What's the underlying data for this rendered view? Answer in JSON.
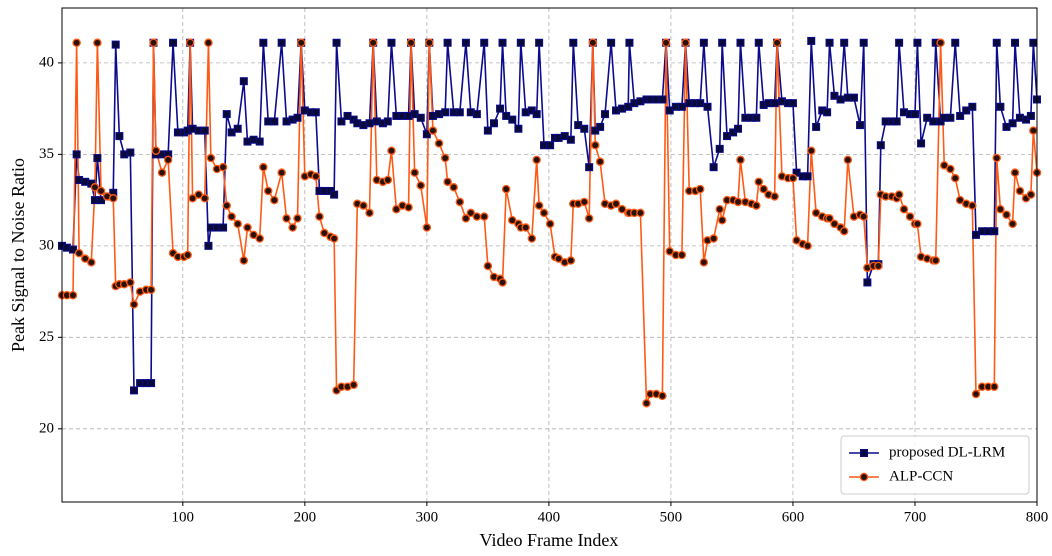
{
  "chart_data": {
    "type": "line",
    "x_label": "Video Frame Index",
    "y_label": "Peak Signal to Noise Ratio",
    "x": [
      1,
      5,
      10,
      13,
      15,
      20,
      25,
      28,
      30,
      33,
      38,
      43,
      45,
      48,
      52,
      57,
      60,
      65,
      70,
      74,
      76,
      78,
      83,
      88,
      92,
      96,
      101,
      104,
      106,
      108,
      113,
      118,
      121,
      123,
      128,
      133,
      136,
      140,
      145,
      150,
      153,
      158,
      163,
      166,
      170,
      175,
      181,
      185,
      190,
      194,
      197,
      200,
      205,
      209,
      212,
      216,
      221,
      224,
      226,
      230,
      235,
      240,
      243,
      248,
      253,
      256,
      259,
      264,
      268,
      271,
      275,
      280,
      285,
      287,
      290,
      295,
      300,
      302,
      305,
      310,
      315,
      317,
      322,
      327,
      332,
      336,
      341,
      347,
      350,
      355,
      360,
      362,
      365,
      370,
      375,
      377,
      381,
      386,
      390,
      392,
      396,
      401,
      405,
      408,
      413,
      418,
      420,
      424,
      429,
      433,
      436,
      438,
      442,
      446,
      451,
      455,
      460,
      465,
      466,
      470,
      475,
      480,
      483,
      488,
      493,
      496,
      499,
      504,
      509,
      512,
      515,
      520,
      524,
      527,
      530,
      535,
      540,
      542,
      546,
      551,
      555,
      557,
      561,
      566,
      570,
      572,
      576,
      580,
      585,
      587,
      591,
      596,
      600,
      603,
      608,
      612,
      615,
      619,
      624,
      628,
      630,
      634,
      639,
      642,
      645,
      650,
      655,
      658,
      661,
      666,
      670,
      672,
      676,
      681,
      685,
      687,
      691,
      696,
      700,
      702,
      705,
      710,
      715,
      717,
      721,
      724,
      729,
      733,
      737,
      742,
      747,
      750,
      755,
      760,
      765,
      767,
      770,
      775,
      780,
      782,
      786,
      791,
      795,
      797,
      800
    ],
    "series": [
      {
        "name": "proposed DL-LRM",
        "color": "#0b0b8c",
        "marker": "square",
        "values": [
          30,
          29.9,
          29.8,
          35,
          33.6,
          33.5,
          33.4,
          32.5,
          34.8,
          32.5,
          32.7,
          32.9,
          41,
          36,
          35,
          35.1,
          22.1,
          22.5,
          22.5,
          22.5,
          41.1,
          35,
          35,
          35,
          41.1,
          36.2,
          36.2,
          36.3,
          41.1,
          36.4,
          36.3,
          36.3,
          30,
          31,
          31,
          31,
          37.2,
          36.2,
          36.4,
          39,
          35.7,
          35.8,
          35.7,
          41.1,
          36.8,
          36.8,
          41.1,
          36.8,
          36.9,
          37,
          41.1,
          37.4,
          37.3,
          37.3,
          33,
          33,
          33,
          32.8,
          41.1,
          36.8,
          37.1,
          36.9,
          36.7,
          36.6,
          36.7,
          41.1,
          36.8,
          36.7,
          36.8,
          41.1,
          37.1,
          37.1,
          37.1,
          41.1,
          37.2,
          37,
          36.1,
          41.1,
          37.1,
          37.2,
          37.3,
          41.1,
          37.3,
          37.3,
          41.1,
          37.3,
          37.2,
          41.1,
          36.3,
          36.7,
          37.5,
          41.1,
          37.1,
          36.9,
          36.4,
          41.1,
          37.3,
          37.4,
          37.2,
          41.1,
          35.5,
          35.5,
          35.9,
          35.9,
          36,
          35.8,
          41.1,
          36.6,
          36.4,
          34.3,
          41.1,
          36.3,
          36.5,
          37.2,
          41.1,
          37.4,
          37.5,
          37.6,
          41.1,
          37.8,
          37.9,
          38,
          38,
          38,
          38,
          41.1,
          37.4,
          37.6,
          37.6,
          41.1,
          37.8,
          37.8,
          37.8,
          41.1,
          37.6,
          34.3,
          35.3,
          41.1,
          36,
          36.2,
          36.4,
          41.1,
          37,
          37,
          37,
          41.1,
          37.7,
          37.8,
          37.8,
          41.1,
          37.9,
          37.8,
          37.8,
          34,
          33.8,
          33.8,
          41.2,
          36.5,
          37.4,
          37.3,
          41.1,
          38.2,
          38,
          41.1,
          38.1,
          38.1,
          36.6,
          41.1,
          28,
          29,
          29,
          35.5,
          36.8,
          36.8,
          36.8,
          41.1,
          37.3,
          37.2,
          37.2,
          41.1,
          35.6,
          37,
          36.8,
          41.1,
          36.8,
          37,
          37,
          41.1,
          37.1,
          37.4,
          37.6,
          30.6,
          30.8,
          30.8,
          30.8,
          41.1,
          37.6,
          36.5,
          36.7,
          41.1,
          37,
          36.9,
          37.1,
          41.1,
          38
        ]
      },
      {
        "name": "ALP-CCN",
        "color": "#ff5a14",
        "marker": "circle",
        "values": [
          27.3,
          27.3,
          27.3,
          41.1,
          29.6,
          29.3,
          29.1,
          33.2,
          41.1,
          33,
          32.7,
          32.6,
          27.8,
          27.9,
          27.9,
          28,
          26.8,
          27.5,
          27.6,
          27.6,
          41.1,
          35.2,
          34,
          34.7,
          29.6,
          29.4,
          29.4,
          29.5,
          41.1,
          32.6,
          32.8,
          32.6,
          41.1,
          34.8,
          34.2,
          34.3,
          32.2,
          31.6,
          31.2,
          29.2,
          31,
          30.6,
          30.4,
          34.3,
          33,
          32.5,
          34,
          31.5,
          31,
          31.5,
          41.1,
          33.8,
          33.9,
          33.8,
          31.6,
          30.7,
          30.5,
          30.4,
          22.1,
          22.3,
          22.3,
          22.4,
          32.3,
          32.2,
          31.8,
          41.1,
          33.6,
          33.5,
          33.6,
          35.2,
          32,
          32.2,
          32.1,
          41.1,
          34,
          33.3,
          31,
          41.1,
          36.3,
          35.6,
          34.8,
          33.5,
          33.2,
          32.4,
          31.5,
          31.8,
          31.6,
          31.6,
          28.9,
          28.3,
          28.2,
          28,
          33.1,
          31.4,
          31.2,
          31,
          31,
          30.4,
          34.7,
          32.2,
          31.8,
          31.2,
          29.4,
          29.3,
          29.1,
          29.2,
          32.3,
          32.3,
          32.4,
          31.5,
          41.1,
          35.5,
          34.6,
          32.3,
          32.2,
          32.3,
          32,
          31.8,
          31.8,
          31.8,
          31.8,
          21.4,
          21.9,
          21.9,
          21.8,
          41.1,
          29.7,
          29.5,
          29.5,
          41.1,
          33,
          33,
          33.1,
          29.1,
          30.3,
          30.4,
          32,
          31.4,
          32.5,
          32.5,
          32.4,
          34.7,
          32.4,
          32.3,
          32.2,
          33.5,
          33.1,
          32.8,
          32.7,
          41.1,
          33.8,
          33.7,
          33.7,
          30.3,
          30.1,
          30,
          35.2,
          31.8,
          31.6,
          31.5,
          31.5,
          31.2,
          31,
          30.8,
          34.7,
          31.6,
          31.7,
          31.6,
          28.8,
          28.9,
          28.9,
          32.8,
          32.7,
          32.7,
          32.6,
          32.8,
          32,
          31.6,
          31.2,
          31.2,
          29.4,
          29.3,
          29.2,
          29.2,
          41.1,
          34.4,
          34.2,
          33.7,
          32.5,
          32.3,
          32.2,
          21.9,
          22.3,
          22.3,
          22.3,
          34.8,
          32,
          31.7,
          31.2,
          34,
          33,
          32.6,
          32.8,
          36.3,
          34
        ]
      }
    ],
    "xlim": [
      1,
      800
    ],
    "xticks": [
      100,
      200,
      300,
      400,
      500,
      600,
      700,
      800
    ],
    "ylim": [
      16,
      43
    ],
    "yticks": [
      20,
      25,
      30,
      35,
      40
    ],
    "grid": true,
    "legend": "lower right"
  }
}
